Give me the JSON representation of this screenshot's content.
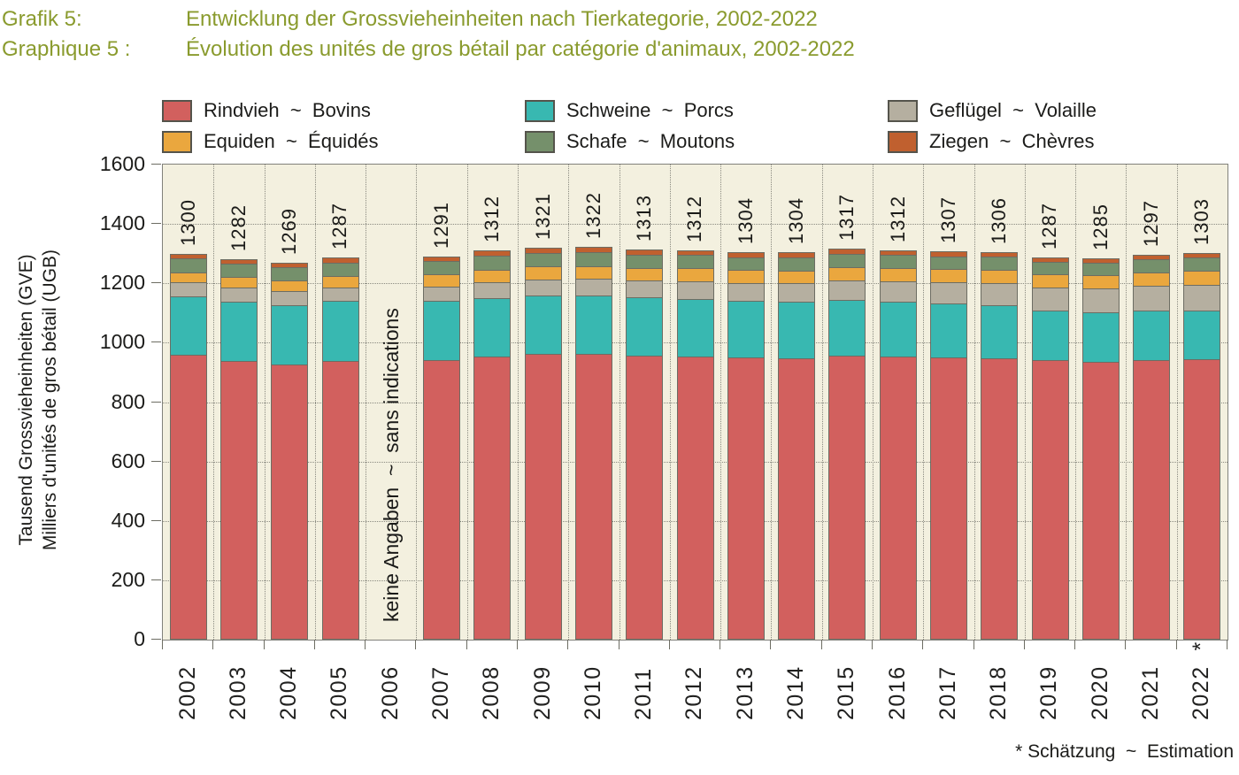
{
  "title": {
    "color": "#8a9b2e",
    "de_label": "Grafik 5:",
    "de_text": "Entwicklung der Grossvieheinheiten nach Tierkategorie, 2002-2022",
    "fr_label": "Graphique 5 :",
    "fr_text": "Évolution des unités de gros bétail par catégorie d'animaux, 2002-2022"
  },
  "legend": {
    "separator": "~",
    "items": [
      {
        "id": "rindvieh",
        "label_de": "Rindvieh",
        "label_fr": "Bovins",
        "color": "#d2605e"
      },
      {
        "id": "equiden",
        "label_de": "Equiden",
        "label_fr": "Équidés",
        "color": "#eaa73e"
      },
      {
        "id": "schweine",
        "label_de": "Schweine",
        "label_fr": "Porcs",
        "color": "#38b8b1"
      },
      {
        "id": "schafe",
        "label_de": "Schafe",
        "label_fr": "Moutons",
        "color": "#75906b"
      },
      {
        "id": "gefluegel",
        "label_de": "Geflügel",
        "label_fr": "Volaille",
        "color": "#b5afa0"
      },
      {
        "id": "ziegen",
        "label_de": "Ziegen",
        "label_fr": "Chèvres",
        "color": "#c0602f"
      }
    ]
  },
  "y_axis": {
    "title_de": "Tausend Grossvieheinheiten (GVE)",
    "title_fr": "Milliers d'unités de gros bétail (UGB)",
    "ticks": [
      0,
      200,
      400,
      600,
      800,
      1000,
      1200,
      1400,
      1600
    ]
  },
  "annotations": {
    "no_data": "keine Angaben  ~  sans indications",
    "footnote": "* Schätzung  ~  Estimation",
    "estimated_marker": "*"
  },
  "chart_data": {
    "type": "bar",
    "subtype": "stacked",
    "title": "Entwicklung der Grossvieheinheiten nach Tierkategorie, 2002-2022",
    "ylabel": "Tausend Grossvieheinheiten (GVE) / Milliers d'unités de gros bétail (UGB)",
    "ylim": [
      0,
      1600
    ],
    "grid": true,
    "legend_position": "top",
    "categories": [
      "2002",
      "2003",
      "2004",
      "2005",
      "2006",
      "2007",
      "2008",
      "2009",
      "2010",
      "2011",
      "2012",
      "2013",
      "2014",
      "2015",
      "2016",
      "2017",
      "2018",
      "2019",
      "2020",
      "2021",
      "2022"
    ],
    "no_data_category": "2006",
    "estimated_category": "2022",
    "stack_order": [
      "rindvieh",
      "schweine",
      "gefluegel",
      "equiden",
      "schafe",
      "ziegen"
    ],
    "series": [
      {
        "id": "rindvieh",
        "name": "Rindvieh ~ Bovins",
        "values": [
          968,
          947,
          935,
          947,
          null,
          952,
          964,
          971,
          972,
          966,
          964,
          959,
          958,
          967,
          964,
          960,
          958,
          950,
          946,
          951,
          953
        ]
      },
      {
        "id": "schweine",
        "name": "Schweine ~ Porcs",
        "values": [
          198,
          202,
          201,
          203,
          null,
          198,
          197,
          198,
          198,
          196,
          194,
          191,
          189,
          187,
          184,
          181,
          178,
          167,
          165,
          166,
          165
        ]
      },
      {
        "id": "gefluegel",
        "name": "Geflügel ~ Volaille",
        "values": [
          45,
          43,
          44,
          44,
          null,
          47,
          49,
          51,
          52,
          54,
          56,
          58,
          60,
          63,
          66,
          69,
          72,
          76,
          78,
          81,
          84
        ]
      },
      {
        "id": "equiden",
        "name": "Equiden ~ Équidés",
        "values": [
          32,
          34,
          35,
          37,
          null,
          39,
          40,
          41,
          41,
          41,
          42,
          42,
          42,
          43,
          43,
          43,
          43,
          42,
          43,
          44,
          45
        ]
      },
      {
        "id": "schafe",
        "name": "Schafe ~ Moutons",
        "values": [
          43,
          42,
          41,
          42,
          null,
          41,
          47,
          45,
          44,
          42,
          42,
          40,
          41,
          42,
          41,
          40,
          41,
          39,
          40,
          41,
          42
        ]
      },
      {
        "id": "ziegen",
        "name": "Ziegen ~ Chèvres",
        "values": [
          14,
          14,
          13,
          14,
          null,
          14,
          15,
          15,
          15,
          14,
          14,
          14,
          14,
          15,
          14,
          14,
          14,
          13,
          13,
          14,
          14
        ]
      }
    ],
    "totals": [
      1300,
      1282,
      1269,
      1287,
      null,
      1291,
      1312,
      1321,
      1322,
      1313,
      1312,
      1304,
      1304,
      1317,
      1312,
      1307,
      1306,
      1287,
      1285,
      1297,
      1303
    ]
  }
}
